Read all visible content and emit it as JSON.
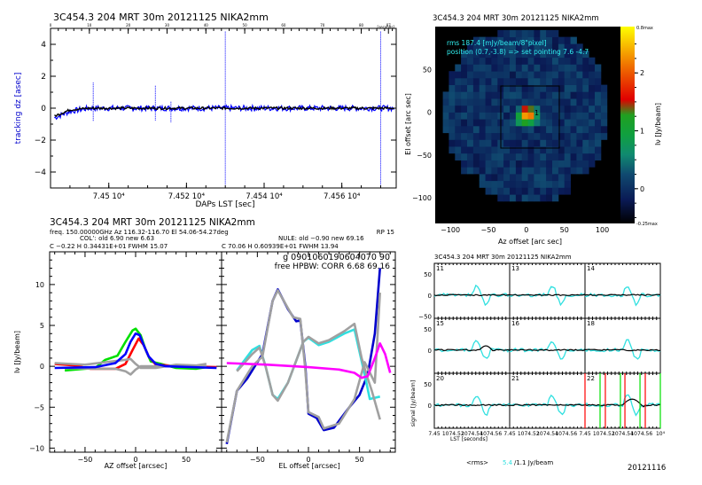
{
  "chart_data": [
    {
      "id": "tracking",
      "type": "line",
      "title": "3C454.3   204 MRT 30m   20121125 NIKA2mm",
      "xlabel": "DAPs LST [sec]",
      "ylabel": "tracking dz [asec]",
      "xlim": [
        74485,
        74574
      ],
      "ylim": [
        -5,
        5
      ],
      "xtick_labels": [
        "7.45 10^4",
        "7.452 10^4",
        "7.454 10^4",
        "7.456 10^4"
      ],
      "xtick_values": [
        74500,
        74520,
        74540,
        74560
      ],
      "ytick_values": [
        -4,
        -2,
        0,
        2,
        4
      ],
      "top_axis_label": "[seconds]",
      "top_ticks": [
        "0",
        "10",
        "20",
        "30",
        "40",
        "50",
        "60",
        "70",
        "80",
        "87"
      ],
      "series": [
        {
          "name": "tracking blue",
          "color": "#0000ff",
          "baseline": [
            [
              74486,
              -0.6
            ],
            [
              74490,
              -0.2
            ],
            [
              74495,
              0
            ],
            [
              74574,
              0
            ]
          ],
          "spikes": [
            [
              74496,
              1.6,
              -0.8
            ],
            [
              74512,
              1.4,
              -0.8
            ],
            [
              74516,
              0.4,
              -0.9
            ],
            [
              74530,
              4.8,
              -4.8
            ],
            [
              74570,
              4.8,
              -4.8
            ]
          ]
        },
        {
          "name": "tracking black",
          "color": "#000000",
          "baseline": [
            [
              74486,
              -0.5
            ],
            [
              74490,
              -0.1
            ],
            [
              74495,
              0
            ],
            [
              74574,
              0
            ]
          ]
        }
      ]
    },
    {
      "id": "map",
      "type": "heatmap",
      "title": "3C454.3   204 MRT 30m   20121125 NIKA2mm",
      "xlabel": "Az offset [arc sec]",
      "ylabel": "El offset [arc sec]",
      "xlim": [
        -120,
        125
      ],
      "ylim": [
        -130,
        100
      ],
      "xtick_values": [
        -100,
        -50,
        0,
        50,
        100
      ],
      "ytick_values": [
        -100,
        -50,
        0,
        50
      ],
      "annotations": [
        "rms 187.4 [mJy/beam/8\"pixel]",
        "position (0.7,-3.8) => set pointing 7.6 -4.7"
      ],
      "peak": {
        "x": 0.7,
        "y": -3.8,
        "label": "1"
      },
      "colorbar": {
        "label": "Iν [Jy/beam]",
        "max_label": "0.8max",
        "min_label": "-0.25max",
        "tick_values": [
          0,
          1,
          2
        ],
        "range": [
          -0.6,
          2.8
        ]
      }
    },
    {
      "id": "az_scan",
      "type": "line",
      "xlabel": "AZ offset [arcsec]",
      "ylabel": "Iν [Jy/beam]",
      "xlim": [
        -85,
        85
      ],
      "ylim": [
        -10.5,
        14
      ],
      "xtick_values": [
        -50,
        0,
        50
      ],
      "ytick_values": [
        -10,
        -5,
        0,
        5,
        10
      ],
      "series": [
        {
          "name": "green",
          "color": "#00e000",
          "points": [
            [
              -70,
              -0.5
            ],
            [
              -40,
              -0.2
            ],
            [
              -30,
              0.8
            ],
            [
              -18,
              1.3
            ],
            [
              -10,
              3
            ],
            [
              -3,
              4.4
            ],
            [
              0,
              4.6
            ],
            [
              5,
              3.8
            ],
            [
              10,
              2
            ],
            [
              15,
              0.6
            ],
            [
              25,
              0.3
            ],
            [
              40,
              -0.2
            ],
            [
              60,
              -0.3
            ],
            [
              70,
              -0.1
            ]
          ]
        },
        {
          "name": "red",
          "color": "#ff0000",
          "points": [
            [
              -80,
              0.3
            ],
            [
              -60,
              0.1
            ],
            [
              -45,
              -0.3
            ],
            [
              -20,
              -0.3
            ],
            [
              -10,
              0.3
            ],
            [
              -3,
              2
            ],
            [
              3,
              3.4
            ],
            [
              8,
              2.6
            ],
            [
              13,
              1.2
            ],
            [
              20,
              0.2
            ],
            [
              45,
              0
            ],
            [
              80,
              -0.1
            ]
          ]
        },
        {
          "name": "gray1",
          "color": "#a0a0a0",
          "points": [
            [
              -80,
              0.4
            ],
            [
              -50,
              0.2
            ],
            [
              -30,
              0.5
            ],
            [
              -10,
              0.8
            ],
            [
              -5,
              0.9
            ],
            [
              0,
              0.3
            ],
            [
              5,
              -0.2
            ],
            [
              20,
              -0.2
            ],
            [
              40,
              0.2
            ],
            [
              60,
              0.1
            ],
            [
              70,
              0.3
            ]
          ]
        },
        {
          "name": "gray2",
          "color": "#a0a0a0",
          "points": [
            [
              -70,
              -0.2
            ],
            [
              -40,
              -0.3
            ],
            [
              -20,
              -0.3
            ],
            [
              -10,
              -0.6
            ],
            [
              -5,
              -1
            ],
            [
              0,
              -0.4
            ],
            [
              5,
              0
            ],
            [
              20,
              0
            ],
            [
              50,
              0
            ],
            [
              70,
              0
            ]
          ]
        },
        {
          "name": "blue",
          "color": "#0000ff",
          "points": [
            [
              -80,
              -0.2
            ],
            [
              -40,
              -0.1
            ],
            [
              -20,
              0.4
            ],
            [
              -10,
              1.5
            ],
            [
              -5,
              3
            ],
            [
              0,
              4
            ],
            [
              4,
              3.8
            ],
            [
              8,
              2.6
            ],
            [
              13,
              1.2
            ],
            [
              20,
              0.3
            ],
            [
              30,
              0
            ],
            [
              80,
              -0.2
            ]
          ]
        }
      ]
    },
    {
      "id": "el_scan",
      "type": "line",
      "xlabel": "EL offset [arcsec]",
      "annotations": [
        "g 0901060190604070 90",
        "free HPBW: CORR   6.68   69.16"
      ],
      "xlim": [
        -85,
        85
      ],
      "ylim": [
        -10.5,
        14
      ],
      "xtick_values": [
        -50,
        0,
        50
      ],
      "series": [
        {
          "name": "blue",
          "color": "#0000cc",
          "points": [
            [
              -80,
              -9.5
            ],
            [
              -70,
              -3
            ],
            [
              -60,
              -1.5
            ],
            [
              -45,
              1.5
            ],
            [
              -35,
              8
            ],
            [
              -30,
              9.4
            ],
            [
              -20,
              7
            ],
            [
              -12,
              5.5
            ],
            [
              -8,
              5.6
            ],
            [
              -3,
              0
            ],
            [
              0,
              -5.8
            ],
            [
              8,
              -6.3
            ],
            [
              15,
              -7.8
            ],
            [
              25,
              -7.5
            ],
            [
              40,
              -5
            ],
            [
              50,
              -3.5
            ],
            [
              58,
              -1
            ],
            [
              65,
              4
            ],
            [
              70,
              12
            ]
          ]
        },
        {
          "name": "cyan",
          "color": "#30e0e0",
          "points": [
            [
              -70,
              -0.5
            ],
            [
              -55,
              2
            ],
            [
              -48,
              2.5
            ],
            [
              -42,
              0
            ],
            [
              -35,
              -3.5
            ],
            [
              -30,
              -4
            ],
            [
              -20,
              -2
            ],
            [
              -5,
              3
            ],
            [
              0,
              3.5
            ],
            [
              10,
              2.6
            ],
            [
              20,
              3
            ],
            [
              35,
              4
            ],
            [
              45,
              4.5
            ],
            [
              55,
              -1
            ],
            [
              60,
              -4
            ],
            [
              70,
              -3.7
            ]
          ]
        },
        {
          "name": "gray-a",
          "color": "#a0a0a0",
          "points": [
            [
              -70,
              -0.6
            ],
            [
              -55,
              1.5
            ],
            [
              -48,
              2.3
            ],
            [
              -42,
              0
            ],
            [
              -35,
              -3.5
            ],
            [
              -30,
              -4.2
            ],
            [
              -20,
              -2
            ],
            [
              -5,
              3
            ],
            [
              0,
              3.6
            ],
            [
              10,
              2.8
            ],
            [
              20,
              3.2
            ],
            [
              35,
              4.3
            ],
            [
              45,
              5.2
            ],
            [
              52,
              1
            ],
            [
              58,
              -1.5
            ],
            [
              62,
              -3
            ],
            [
              70,
              -6.5
            ]
          ]
        },
        {
          "name": "gray-b",
          "color": "#a0a0a0",
          "points": [
            [
              -80,
              -9.3
            ],
            [
              -70,
              -3
            ],
            [
              -55,
              0
            ],
            [
              -45,
              1.2
            ],
            [
              -35,
              8
            ],
            [
              -30,
              9.3
            ],
            [
              -15,
              6
            ],
            [
              -8,
              5.8
            ],
            [
              -3,
              -0.5
            ],
            [
              0,
              -5.6
            ],
            [
              10,
              -6.2
            ],
            [
              15,
              -7.6
            ],
            [
              30,
              -7
            ],
            [
              45,
              -4
            ],
            [
              55,
              0.5
            ],
            [
              65,
              -2
            ],
            [
              70,
              9
            ]
          ]
        },
        {
          "name": "magenta",
          "color": "#ff00ff",
          "points": [
            [
              -80,
              0.4
            ],
            [
              -40,
              0.2
            ],
            [
              0,
              -0.1
            ],
            [
              30,
              -0.4
            ],
            [
              45,
              -0.8
            ],
            [
              52,
              -1.4
            ],
            [
              58,
              -1.2
            ],
            [
              65,
              1
            ],
            [
              70,
              2.8
            ],
            [
              75,
              1.5
            ],
            [
              80,
              -0.8
            ]
          ]
        }
      ]
    },
    {
      "id": "detectors",
      "type": "line",
      "title": "3C454.3   204 MRT 30m   20121125 NIKA2mm",
      "ylabel": "signal [Jy/beam]",
      "xlabel": "LST [seconds]",
      "xtick_labels": [
        "7.45",
        "1074.52",
        "1074.54",
        "1074.56",
        "7.45",
        "1074.52",
        "1074.54",
        "1074.56",
        "7.45",
        "1074.52",
        "1074.54",
        "1074.56",
        "10^4"
      ],
      "ytick_values": [
        -50,
        0,
        50
      ],
      "panels": [
        {
          "label": "11"
        },
        {
          "label": "13"
        },
        {
          "label": "14"
        },
        {
          "label": "15"
        },
        {
          "label": "16"
        },
        {
          "label": "18"
        },
        {
          "label": "20"
        },
        {
          "label": "21"
        },
        {
          "label": "22"
        }
      ],
      "series": [
        {
          "name": "cyan",
          "color": "#30e0e0"
        },
        {
          "name": "black",
          "color": "#000000"
        }
      ],
      "markers": [
        {
          "color": "#ff0000",
          "x": [
            0.0,
            0.27,
            0.53,
            0.8
          ]
        },
        {
          "color": "#00e000",
          "x": [
            0.2,
            0.47,
            0.73,
            1.0
          ]
        }
      ]
    }
  ],
  "info_block": {
    "title": "3C454.3   204 MRT 30m   20121125 NIKA2mm",
    "line1": "freq. 150.00000GHz   Az 116.32-116.70  El 54.06-54.27deg",
    "rp": "RP    15",
    "line2_left": "COL’: old     6.90  new      6.63",
    "line2_right": "NULE: old    −0.90  new    69.16",
    "line3_left": "C   −0.22        H   0.34431E+01     FWHM    15.07",
    "line3_right": "C   70.06        H   0.60939E+01     FWHM    13.94"
  },
  "footer": {
    "rms_label": "<rms>",
    "rms_value": "5.4",
    "rms_rest": "/1.1  Jy/beam",
    "date": "20121116"
  }
}
